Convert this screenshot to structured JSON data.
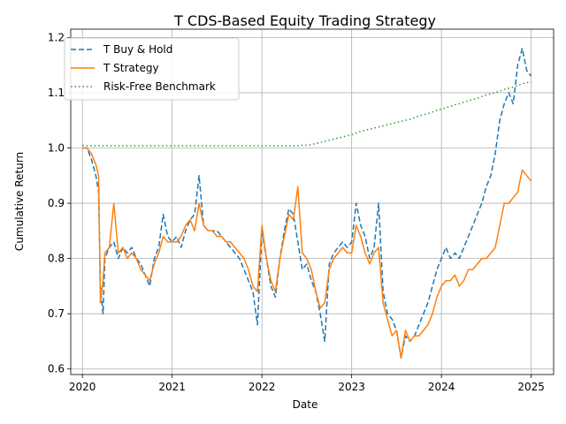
{
  "chart_data": {
    "type": "line",
    "title": "T CDS-Based Equity Trading Strategy",
    "xlabel": "Date",
    "ylabel": "Cumulative Return",
    "x_ticks": [
      "2020",
      "2021",
      "2022",
      "2023",
      "2024",
      "2025"
    ],
    "y_ticks": [
      "0.6",
      "0.7",
      "0.8",
      "0.9",
      "1.0",
      "1.1",
      "1.2"
    ],
    "xlim": [
      2019.87,
      2025.25
    ],
    "ylim": [
      0.59,
      1.215
    ],
    "grid": true,
    "legend_position": "upper-left",
    "x": [
      2020.0,
      2020.05,
      2020.1,
      2020.15,
      2020.18,
      2020.2,
      2020.23,
      2020.25,
      2020.3,
      2020.35,
      2020.4,
      2020.45,
      2020.5,
      2020.55,
      2020.6,
      2020.65,
      2020.7,
      2020.75,
      2020.8,
      2020.85,
      2020.9,
      2020.95,
      2021.0,
      2021.05,
      2021.1,
      2021.15,
      2021.2,
      2021.25,
      2021.3,
      2021.35,
      2021.4,
      2021.45,
      2021.5,
      2021.55,
      2021.6,
      2021.65,
      2021.7,
      2021.75,
      2021.8,
      2021.85,
      2021.9,
      2021.95,
      2022.0,
      2022.05,
      2022.1,
      2022.15,
      2022.2,
      2022.25,
      2022.3,
      2022.35,
      2022.4,
      2022.45,
      2022.5,
      2022.55,
      2022.6,
      2022.65,
      2022.7,
      2022.75,
      2022.8,
      2022.85,
      2022.9,
      2022.95,
      2023.0,
      2023.05,
      2023.1,
      2023.15,
      2023.2,
      2023.25,
      2023.3,
      2023.35,
      2023.4,
      2023.45,
      2023.5,
      2023.55,
      2023.6,
      2023.65,
      2023.7,
      2023.75,
      2023.8,
      2023.85,
      2023.9,
      2023.95,
      2024.0,
      2024.05,
      2024.1,
      2024.15,
      2024.2,
      2024.25,
      2024.3,
      2024.35,
      2024.4,
      2024.45,
      2024.5,
      2024.55,
      2024.6,
      2024.65,
      2024.7,
      2024.75,
      2024.8,
      2024.85,
      2024.9,
      2024.95,
      2025.0
    ],
    "series": [
      {
        "name": "T Buy & Hold",
        "style": "dashed",
        "color": "#1f77b4",
        "values": [
          1.0,
          1.0,
          0.98,
          0.95,
          0.92,
          0.75,
          0.7,
          0.8,
          0.82,
          0.83,
          0.8,
          0.82,
          0.81,
          0.82,
          0.8,
          0.79,
          0.77,
          0.75,
          0.8,
          0.82,
          0.88,
          0.84,
          0.83,
          0.84,
          0.82,
          0.85,
          0.87,
          0.88,
          0.95,
          0.86,
          0.85,
          0.85,
          0.85,
          0.84,
          0.83,
          0.82,
          0.81,
          0.8,
          0.78,
          0.76,
          0.74,
          0.68,
          0.85,
          0.8,
          0.75,
          0.73,
          0.8,
          0.85,
          0.89,
          0.88,
          0.83,
          0.78,
          0.79,
          0.76,
          0.74,
          0.7,
          0.65,
          0.79,
          0.81,
          0.82,
          0.83,
          0.82,
          0.83,
          0.9,
          0.86,
          0.84,
          0.8,
          0.82,
          0.9,
          0.74,
          0.7,
          0.69,
          0.67,
          0.62,
          0.66,
          0.65,
          0.66,
          0.68,
          0.7,
          0.72,
          0.75,
          0.78,
          0.8,
          0.82,
          0.8,
          0.81,
          0.8,
          0.82,
          0.84,
          0.86,
          0.88,
          0.9,
          0.93,
          0.95,
          0.99,
          1.05,
          1.08,
          1.1,
          1.08,
          1.15,
          1.18,
          1.14,
          1.13
        ]
      },
      {
        "name": "T Strategy",
        "style": "solid",
        "color": "#ff7f0e",
        "values": [
          1.0,
          1.0,
          0.99,
          0.97,
          0.95,
          0.72,
          0.76,
          0.81,
          0.82,
          0.9,
          0.81,
          0.82,
          0.8,
          0.81,
          0.8,
          0.78,
          0.77,
          0.76,
          0.79,
          0.81,
          0.84,
          0.83,
          0.83,
          0.83,
          0.84,
          0.86,
          0.87,
          0.85,
          0.9,
          0.86,
          0.85,
          0.85,
          0.84,
          0.84,
          0.83,
          0.83,
          0.82,
          0.81,
          0.8,
          0.78,
          0.75,
          0.74,
          0.86,
          0.8,
          0.76,
          0.74,
          0.8,
          0.84,
          0.88,
          0.87,
          0.93,
          0.81,
          0.8,
          0.78,
          0.74,
          0.71,
          0.72,
          0.78,
          0.8,
          0.81,
          0.82,
          0.81,
          0.81,
          0.86,
          0.84,
          0.81,
          0.79,
          0.81,
          0.82,
          0.72,
          0.69,
          0.66,
          0.67,
          0.62,
          0.67,
          0.65,
          0.66,
          0.66,
          0.67,
          0.68,
          0.7,
          0.73,
          0.75,
          0.76,
          0.76,
          0.77,
          0.75,
          0.76,
          0.78,
          0.78,
          0.79,
          0.8,
          0.8,
          0.81,
          0.82,
          0.86,
          0.9,
          0.9,
          0.91,
          0.92,
          0.96,
          0.95,
          0.94
        ]
      },
      {
        "name": "Risk-Free Benchmark",
        "style": "dotted",
        "color": "#2ca02c",
        "values": [
          1.005,
          1.004,
          1.004,
          1.004,
          1.004,
          1.004,
          1.004,
          1.004,
          1.004,
          1.004,
          1.004,
          1.004,
          1.004,
          1.004,
          1.004,
          1.004,
          1.004,
          1.004,
          1.004,
          1.004,
          1.004,
          1.004,
          1.004,
          1.004,
          1.004,
          1.004,
          1.004,
          1.004,
          1.004,
          1.004,
          1.004,
          1.004,
          1.004,
          1.004,
          1.004,
          1.004,
          1.004,
          1.004,
          1.004,
          1.004,
          1.004,
          1.004,
          1.004,
          1.004,
          1.004,
          1.004,
          1.004,
          1.004,
          1.004,
          1.004,
          1.004,
          1.005,
          1.005,
          1.006,
          1.008,
          1.01,
          1.012,
          1.014,
          1.016,
          1.018,
          1.02,
          1.022,
          1.024,
          1.027,
          1.03,
          1.032,
          1.034,
          1.036,
          1.038,
          1.04,
          1.042,
          1.044,
          1.046,
          1.048,
          1.05,
          1.052,
          1.055,
          1.058,
          1.06,
          1.062,
          1.065,
          1.068,
          1.07,
          1.073,
          1.075,
          1.078,
          1.08,
          1.083,
          1.085,
          1.088,
          1.09,
          1.093,
          1.096,
          1.098,
          1.1,
          1.103,
          1.106,
          1.108,
          1.11,
          1.113,
          1.116,
          1.118,
          1.12
        ]
      }
    ]
  }
}
